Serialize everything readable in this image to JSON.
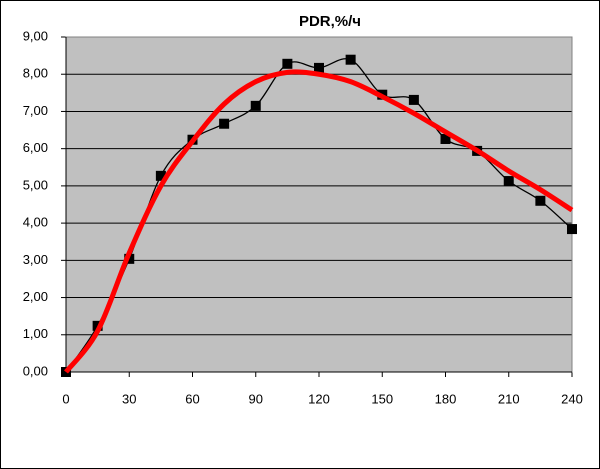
{
  "chart_data": {
    "type": "line",
    "title": "PDR,%/ч",
    "x": [
      0,
      15,
      30,
      45,
      60,
      75,
      90,
      105,
      120,
      135,
      150,
      165,
      180,
      195,
      210,
      225,
      240
    ],
    "series": [
      {
        "color": "#000000",
        "marker": "square",
        "smooth": true,
        "values": [
          0,
          1.24,
          3.04,
          5.27,
          6.24,
          6.67,
          7.15,
          8.28,
          8.17,
          8.39,
          7.45,
          7.31,
          6.26,
          5.94,
          5.13,
          4.6,
          3.84
        ]
      },
      {
        "color": "#ff0000",
        "smooth": true,
        "values": [
          0,
          1.1,
          3.2,
          5.0,
          6.2,
          7.2,
          7.8,
          8.05,
          8.0,
          7.8,
          7.4,
          6.95,
          6.45,
          5.95,
          5.4,
          4.9,
          4.35
        ]
      }
    ],
    "xlim": [
      0,
      240
    ],
    "xticks": [
      0,
      30,
      60,
      90,
      120,
      150,
      180,
      210,
      240
    ],
    "ylim": [
      0,
      9
    ],
    "yticks": [
      {
        "value": 0,
        "label": "0,00"
      },
      {
        "value": 1,
        "label": "1,00"
      },
      {
        "value": 2,
        "label": "2,00"
      },
      {
        "value": 3,
        "label": "3,00"
      },
      {
        "value": 4,
        "label": "4,00"
      },
      {
        "value": 5,
        "label": "5,00"
      },
      {
        "value": 6,
        "label": "6,00"
      },
      {
        "value": 7,
        "label": "7,00"
      },
      {
        "value": 8,
        "label": "8,00"
      },
      {
        "value": 9,
        "label": "9,00"
      }
    ],
    "grid": true,
    "plot_background": "#c0c0c0"
  }
}
